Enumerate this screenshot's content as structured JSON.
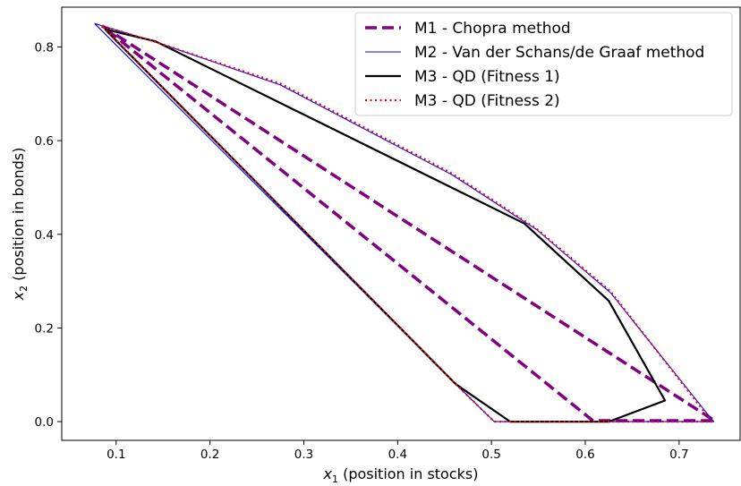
{
  "chart_data": {
    "type": "line",
    "title": "",
    "xlabel": "x₁ (position in stocks)",
    "xlabel_main": "x",
    "xlabel_sub": "1",
    "xlabel_rest": " (position in stocks)",
    "ylabel": "x₂ (position in bonds)",
    "ylabel_main": "x",
    "ylabel_sub": "2",
    "ylabel_rest": " (position in bonds)",
    "xlim": [
      0.042,
      0.765
    ],
    "ylim": [
      -0.04,
      0.885
    ],
    "xticks": [
      0.1,
      0.2,
      0.3,
      0.4,
      0.5,
      0.6,
      0.7
    ],
    "xtick_labels": [
      "0.1",
      "0.2",
      "0.3",
      "0.4",
      "0.5",
      "0.6",
      "0.7"
    ],
    "yticks": [
      0.0,
      0.2,
      0.4,
      0.6,
      0.8
    ],
    "ytick_labels": [
      "0.0",
      "0.2",
      "0.4",
      "0.6",
      "0.8"
    ],
    "legend_position": "top-right",
    "series": [
      {
        "name": "M1 - Chopra method",
        "color": "#800080",
        "style": "dashed",
        "x": [
          0.085,
          0.733,
          0.738,
          0.608,
          0.085
        ],
        "y": [
          0.845,
          0.008,
          0.002,
          0.002,
          0.845
        ]
      },
      {
        "name": "M2 - Van der Schans/de Graaf method",
        "color": "#0000ff",
        "style": "solid-thin",
        "x": [
          0.077,
          0.14,
          0.275,
          0.458,
          0.548,
          0.627,
          0.732,
          0.737,
          0.503,
          0.462,
          0.077
        ],
        "y": [
          0.85,
          0.812,
          0.719,
          0.527,
          0.41,
          0.275,
          0.012,
          0.0,
          0.0,
          0.08,
          0.85
        ]
      },
      {
        "name": "M3 - QD (Fitness 1)",
        "color": "#000000",
        "style": "solid",
        "x": [
          0.088,
          0.142,
          0.535,
          0.625,
          0.685,
          0.625,
          0.52,
          0.462,
          0.088
        ],
        "y": [
          0.838,
          0.812,
          0.423,
          0.258,
          0.045,
          0.0,
          0.0,
          0.08,
          0.838
        ]
      },
      {
        "name": "M3 - QD (Fitness 2)",
        "color": "#ff0000",
        "style": "dotted",
        "x": [
          0.085,
          0.14,
          0.275,
          0.458,
          0.548,
          0.627,
          0.735,
          0.503,
          0.462,
          0.085
        ],
        "y": [
          0.845,
          0.812,
          0.722,
          0.53,
          0.412,
          0.278,
          0.0,
          0.0,
          0.08,
          0.845
        ]
      }
    ]
  }
}
